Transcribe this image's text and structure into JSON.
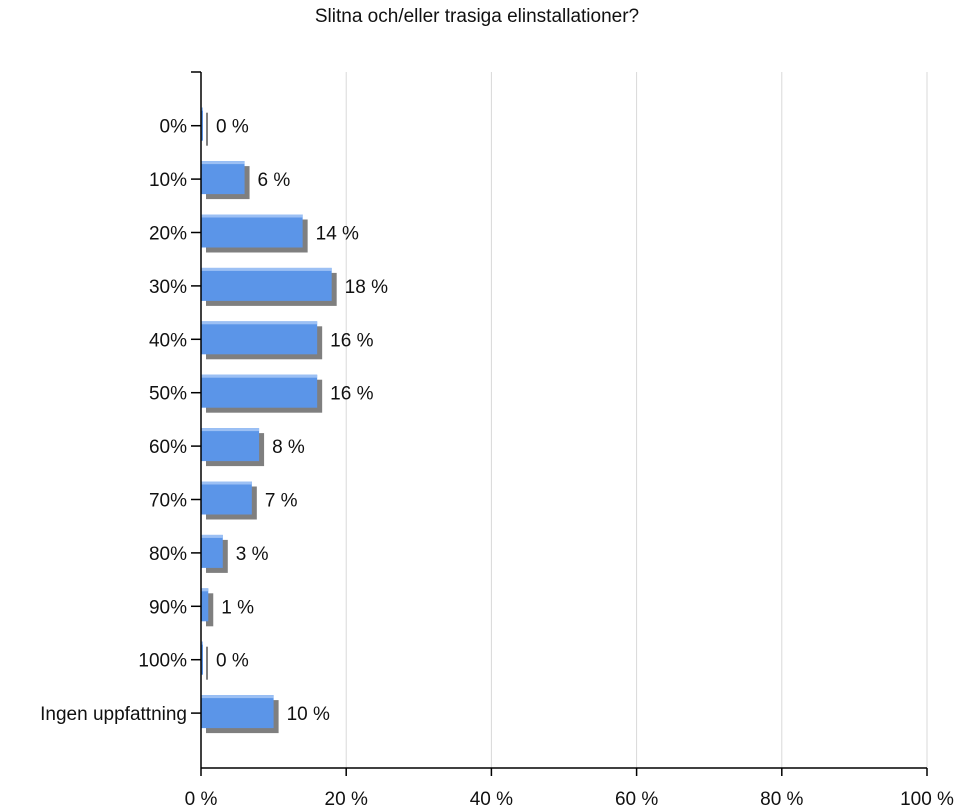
{
  "chart_data": {
    "type": "bar",
    "orientation": "horizontal",
    "title": "Slitna och/eller trasiga elinstallationer?",
    "xlabel": "",
    "ylabel": "",
    "categories": [
      "0%",
      "10%",
      "20%",
      "30%",
      "40%",
      "50%",
      "60%",
      "70%",
      "80%",
      "90%",
      "100%",
      "Ingen uppfattning"
    ],
    "values": [
      0,
      6,
      14,
      18,
      16,
      16,
      8,
      7,
      3,
      1,
      0,
      10
    ],
    "value_labels": [
      "0 %",
      "6 %",
      "14 %",
      "18 %",
      "16 %",
      "16 %",
      "8 %",
      "7 %",
      "3 %",
      "1 %",
      "0 %",
      "10 %"
    ],
    "xlim": [
      0,
      100
    ],
    "x_ticks": [
      0,
      20,
      40,
      60,
      80,
      100
    ],
    "x_tick_labels": [
      "0 %",
      "20 %",
      "40 %",
      "60 %",
      "80 %",
      "100 %"
    ],
    "grid": "vertical",
    "legend": "none",
    "colors": {
      "bar_front": "#5b95e8",
      "bar_light": "#9cc0f4",
      "bar_shadow": "#7f7f7f",
      "grid": "#d9d9d9",
      "axis": "#000000"
    }
  }
}
